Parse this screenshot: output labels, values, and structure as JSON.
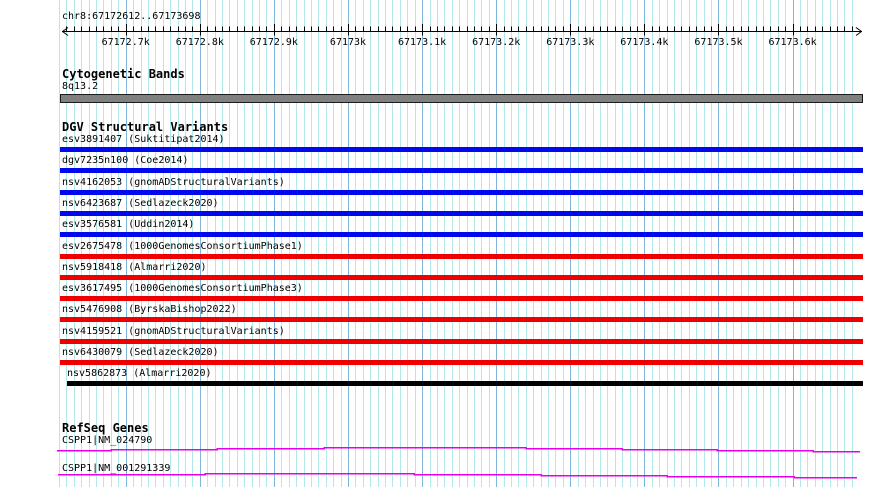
{
  "region": "chr8:67172612..67173698",
  "ruler": {
    "tick_labels": [
      "67172.7k",
      "67172.8k",
      "67172.9k",
      "67173k",
      "67173.1k",
      "67173.2k",
      "67173.3k",
      "67173.4k",
      "67173.5k",
      "67173.6k"
    ]
  },
  "colors": {
    "variant_blue": "#0008ee",
    "variant_red": "#ee0000",
    "variant_black": "#000000",
    "gene_magenta": "#e800e8",
    "band_gray": "#808080",
    "grid_minor": "#b3e9eb",
    "grid_major": "#7fb6dc"
  },
  "tracks": {
    "cytobands": {
      "title": "Cytogenetic Bands",
      "band_label": "8q13.2"
    },
    "dgv": {
      "title": "DGV Structural Variants",
      "variants": [
        {
          "label": "esv3891407 (Suktitipat2014)",
          "color": "variant_blue",
          "partial_start": false
        },
        {
          "label": "dgv7235n100 (Coe2014)",
          "color": "variant_blue",
          "partial_start": false
        },
        {
          "label": "nsv4162053 (gnomADStructuralVariants)",
          "color": "variant_blue",
          "partial_start": false
        },
        {
          "label": "nsv6423687 (Sedlazeck2020)",
          "color": "variant_blue",
          "partial_start": false
        },
        {
          "label": "esv3576581 (Uddin2014)",
          "color": "variant_blue",
          "partial_start": false
        },
        {
          "label": "esv2675478 (1000GenomesConsortiumPhase1)",
          "color": "variant_red",
          "partial_start": false
        },
        {
          "label": "nsv5918418 (Almarri2020)",
          "color": "variant_red",
          "partial_start": false
        },
        {
          "label": "esv3617495 (1000GenomesConsortiumPhase3)",
          "color": "variant_red",
          "partial_start": false
        },
        {
          "label": "nsv5476908 (ByrskaBishop2022)",
          "color": "variant_red",
          "partial_start": false
        },
        {
          "label": "nsv4159521 (gnomADStructuralVariants)",
          "color": "variant_red",
          "partial_start": false
        },
        {
          "label": "nsv6430079 (Sedlazeck2020)",
          "color": "variant_red",
          "partial_start": false
        },
        {
          "label": "nsv5862873 (Almarri2020)",
          "color": "variant_black",
          "partial_start": true
        }
      ]
    },
    "refseq": {
      "title": "RefSeq Genes",
      "genes": [
        {
          "label": "CSPP1|NM_024790"
        },
        {
          "label": "CSPP1|NM_001291339"
        }
      ]
    }
  }
}
